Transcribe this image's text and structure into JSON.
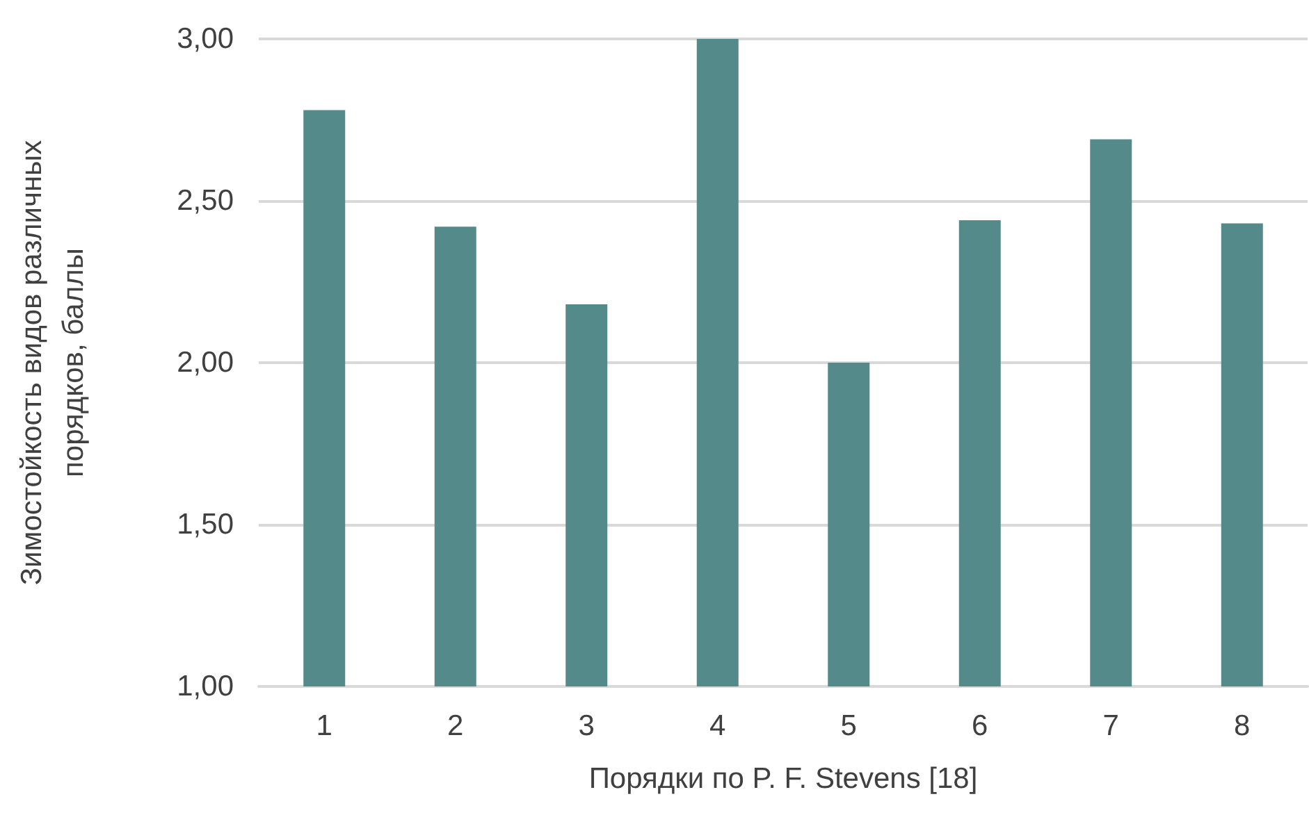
{
  "chart_data": {
    "type": "bar",
    "xlabel": "Порядки по P. F. Stevens [18]",
    "ylabel": "Зимостойкость видов различных\nпорядков, баллы",
    "categories": [
      "1",
      "2",
      "3",
      "4",
      "5",
      "6",
      "7",
      "8"
    ],
    "values": [
      2.78,
      2.42,
      2.18,
      3.0,
      2.0,
      2.44,
      2.69,
      2.43
    ],
    "color": "#548b8a",
    "ylim": [
      1,
      3
    ],
    "yticks": [
      {
        "value": 1,
        "label": "1,00"
      },
      {
        "value": 1.5,
        "label": "1,50"
      },
      {
        "value": 2,
        "label": "2,00"
      },
      {
        "value": 2.5,
        "label": "2,50"
      },
      {
        "value": 3,
        "label": "3,00"
      }
    ],
    "grid": "y"
  }
}
